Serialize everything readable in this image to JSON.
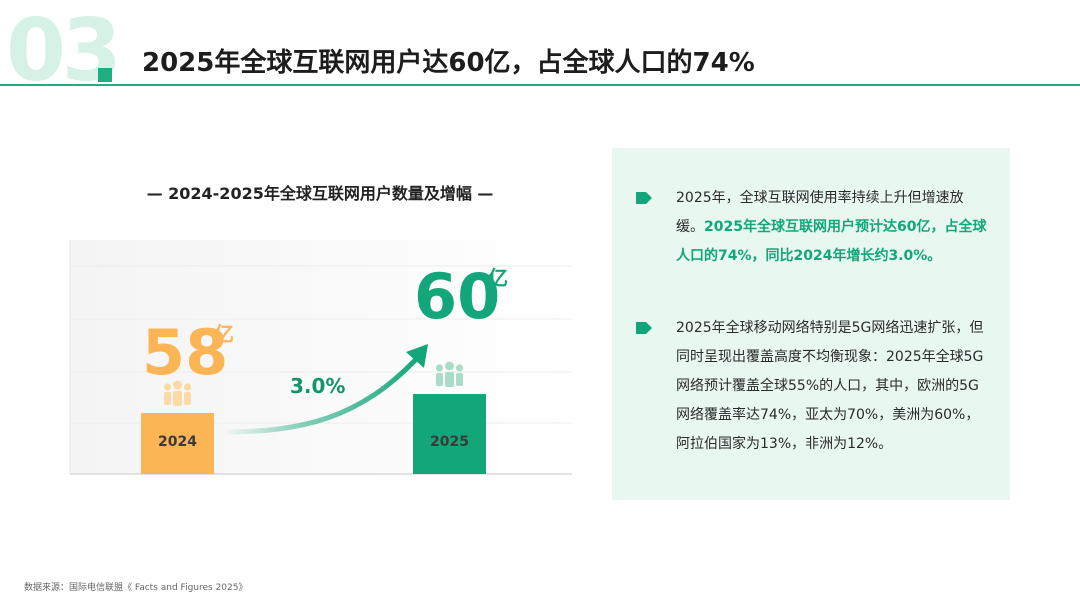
{
  "header": {
    "section_number": "03",
    "title": "2025年全球互联网用户达60亿，占全球人口的74%"
  },
  "chart_data": {
    "type": "bar",
    "title": "— 2024-2025年全球互联网用户数量及增幅 —",
    "categories": [
      "2024",
      "2025"
    ],
    "values": [
      58,
      60
    ],
    "unit": "亿",
    "value_labels": [
      "58",
      "60"
    ],
    "growth_label": "3.0%",
    "colors": {
      "2024": "#fbb555",
      "2025": "#13a67a"
    }
  },
  "info": {
    "bullet1": {
      "plain": "2025年，全球互联网使用率持续上升但增速放缓。",
      "highlight": "2025年全球互联网用户预计达60亿，占全球人口的74%，同比2024年增长约3.0%。"
    },
    "bullet2": {
      "plain": "2025年全球移动网络特别是5G网络迅速扩张，但同时呈现出覆盖高度不均衡现象：2025年全球5G网络预计覆盖全球55%的人口，其中，欧洲的5G网络覆盖率达74%，亚太为70%，美洲为60%，阿拉伯国家为13%，非洲为12%。"
    }
  },
  "source": "数据来源：国际电信联盟《 Facts and Figures 2025》",
  "colors": {
    "accent": "#13a67a",
    "orange": "#fbb555",
    "panel": "#e9f7f1"
  }
}
